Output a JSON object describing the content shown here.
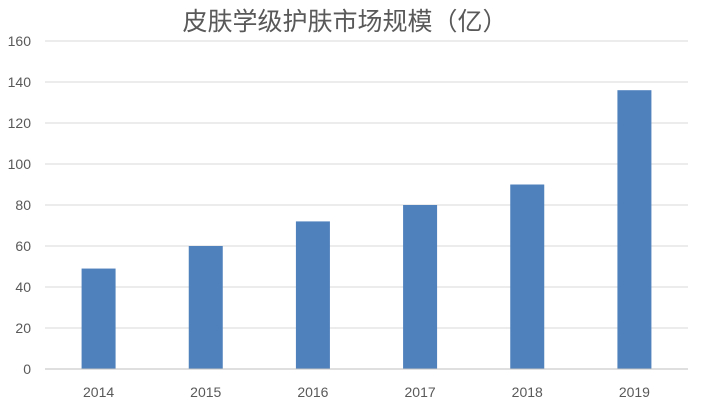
{
  "chart_data": {
    "type": "bar",
    "title": "皮肤学级护肤市场规模（亿）",
    "xlabel": "",
    "ylabel": "",
    "categories": [
      "2014",
      "2015",
      "2016",
      "2017",
      "2018",
      "2019"
    ],
    "values": [
      49,
      60,
      72,
      80,
      90,
      136
    ],
    "ylim": [
      0,
      160
    ],
    "yticks": [
      "0",
      "20",
      "40",
      "60",
      "80",
      "100",
      "120",
      "140",
      "160"
    ],
    "grid": true,
    "legend": "none",
    "bar_color": "#4f81bd"
  }
}
